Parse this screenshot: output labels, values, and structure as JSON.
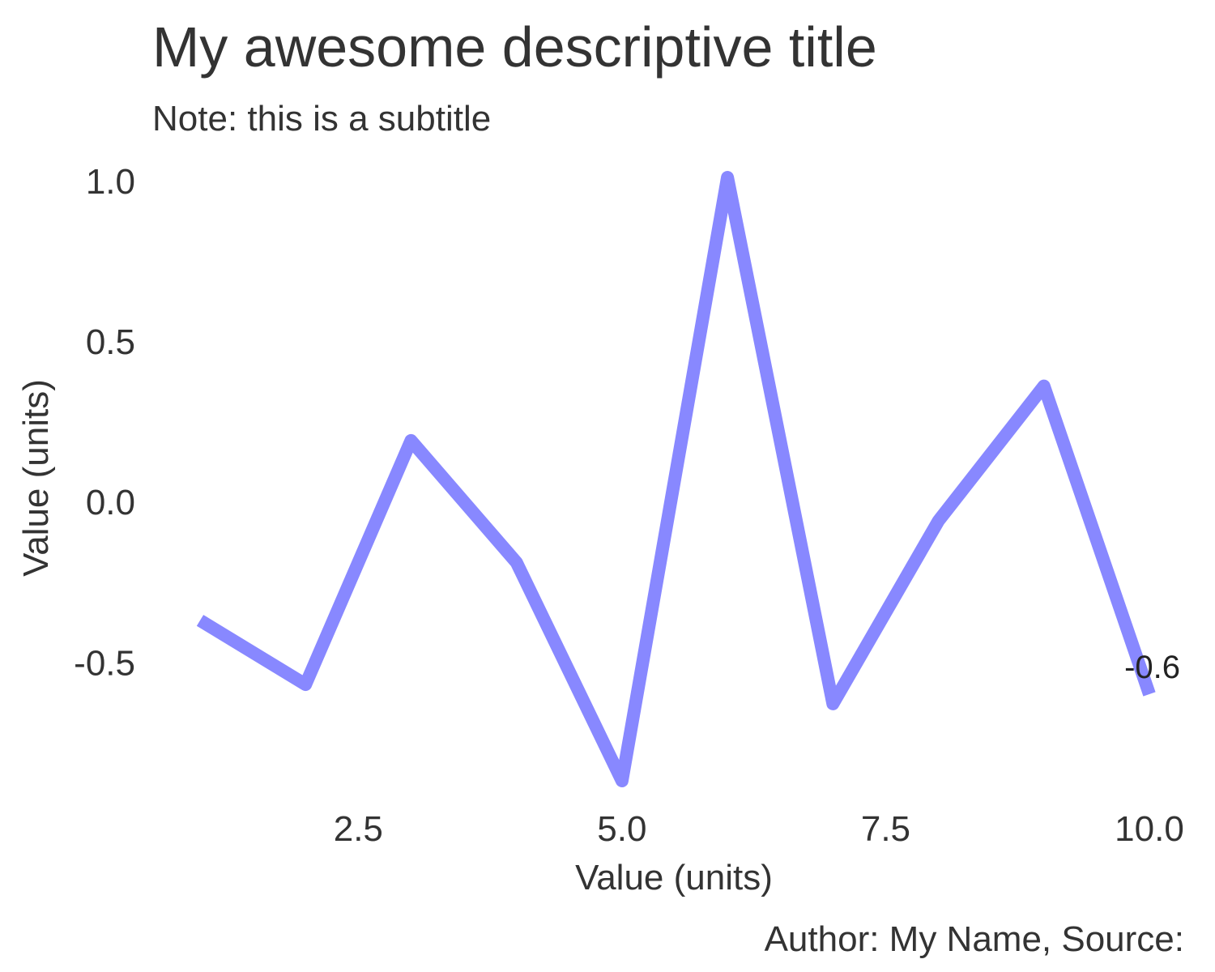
{
  "chart_data": {
    "type": "line",
    "title": "My awesome descriptive title",
    "subtitle": "Note: this is a subtitle",
    "caption": "Author: My Name, Source:",
    "xlabel": "Value (units)",
    "ylabel": "Value (units)",
    "xlim": [
      1,
      10
    ],
    "ylim": [
      -0.88,
      1.02
    ],
    "x_ticks": [
      2.5,
      5.0,
      7.5,
      10.0
    ],
    "x_tick_labels": [
      "2.5",
      "5.0",
      "7.5",
      "10.0"
    ],
    "y_ticks": [
      -0.5,
      0.0,
      0.5,
      1.0
    ],
    "y_tick_labels": [
      "-0.5",
      "0.0",
      "0.5",
      "1.0"
    ],
    "grid": false,
    "legend": "none",
    "series": [
      {
        "color": "#8888ff",
        "x": [
          1,
          2,
          3,
          4,
          5,
          6,
          7,
          8,
          9,
          10
        ],
        "y": [
          -0.37,
          -0.57,
          0.19,
          -0.19,
          -0.87,
          1.01,
          -0.63,
          -0.06,
          0.36,
          -0.6
        ]
      }
    ],
    "end_label": "-0.6"
  }
}
